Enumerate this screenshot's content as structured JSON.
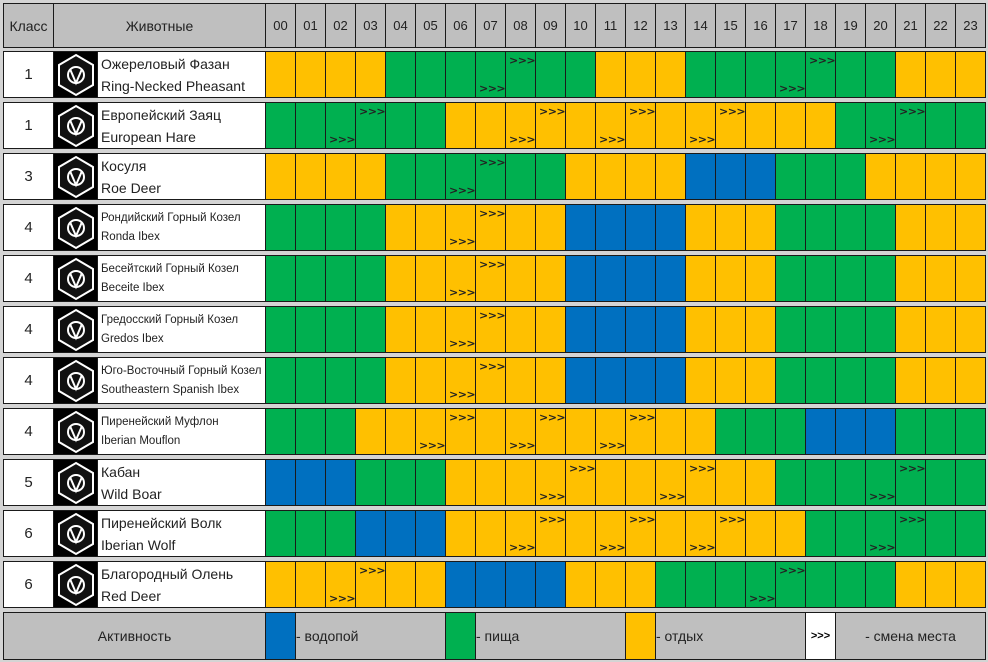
{
  "header": {
    "class_label": "Класс",
    "animals_label": "Животные",
    "hours": [
      "00",
      "01",
      "02",
      "03",
      "04",
      "05",
      "06",
      "07",
      "08",
      "09",
      "10",
      "11",
      "12",
      "13",
      "14",
      "15",
      "16",
      "17",
      "18",
      "19",
      "20",
      "21",
      "22",
      "23"
    ]
  },
  "colors": {
    "water": "#0070c0",
    "food": "#00b050",
    "rest": "#ffc000"
  },
  "move_symbol": ">>>",
  "rows": [
    {
      "class": "1",
      "ru": "Ожереловый Фазан",
      "en": "Ring-Necked Pheasant",
      "icon": "pheasant-icon",
      "hours": "yyyygggggggyyygggggggyyy",
      "top": [
        8,
        18
      ],
      "bottom": [
        7,
        17
      ]
    },
    {
      "class": "1",
      "ru": "Европейский Заяц",
      "en": "European Hare",
      "icon": "hare-icon",
      "hours": "ggggggyyyyyyyyyyyyyggggg",
      "top": [
        3,
        9,
        12,
        15,
        21
      ],
      "bottom": [
        2,
        8,
        11,
        14,
        20
      ]
    },
    {
      "class": "3",
      "ru": "Косуля",
      "en": "Roe Deer",
      "icon": "roe-deer-icon",
      "hours": "yyyyggggggyyyybbbgggyyyy",
      "top": [
        7
      ],
      "bottom": [
        6
      ]
    },
    {
      "class": "4",
      "ru": "Рондийский Горный Козел",
      "en": "Ronda Ibex",
      "icon": "ibex-icon",
      "hours": "ggggyyyyyybbbbyyyggggyyy",
      "top": [
        7
      ],
      "bottom": [
        6
      ],
      "small": true
    },
    {
      "class": "4",
      "ru": "Бесейтский Горный Козел",
      "en": "Beceite Ibex",
      "icon": "ibex-icon",
      "hours": "ggggyyyyyybbbbyyyggggyyy",
      "top": [
        7
      ],
      "bottom": [
        6
      ],
      "small": true
    },
    {
      "class": "4",
      "ru": "Гредосский Горный Козел",
      "en": "Gredos Ibex",
      "icon": "ibex-icon",
      "hours": "ggggyyyyyybbbbyyyggggyyy",
      "top": [
        7
      ],
      "bottom": [
        6
      ],
      "small": true
    },
    {
      "class": "4",
      "ru": "Юго-Восточный Горный Козел",
      "en": "Southeastern Spanish Ibex",
      "icon": "ibex-icon",
      "hours": "ggggyyyyyybbbbyyyggggyyy",
      "top": [
        7
      ],
      "bottom": [
        6
      ],
      "small": true
    },
    {
      "class": "4",
      "ru": "Пиренейский Муфлон",
      "en": "Iberian Mouflon",
      "icon": "mouflon-icon",
      "hours": "gggyyyyyyyyyyyygggbbbggg",
      "top": [
        6,
        9,
        12
      ],
      "bottom": [
        5,
        8,
        11
      ],
      "small": true
    },
    {
      "class": "5",
      "ru": "Кабан",
      "en": "Wild Boar",
      "icon": "boar-icon",
      "hours": "bbbgggyyyyyyyyyyyggggggg",
      "top": [
        10,
        14,
        21
      ],
      "bottom": [
        9,
        13,
        20
      ]
    },
    {
      "class": "6",
      "ru": "Пиренейский Волк",
      "en": "Iberian Wolf",
      "icon": "wolf-icon",
      "hours": "gggbbbyyyyyyyyyyyygggggg",
      "top": [
        9,
        12,
        15,
        21
      ],
      "bottom": [
        8,
        11,
        14,
        20
      ]
    },
    {
      "class": "6",
      "ru": "Благородный Олень",
      "en": "Red Deer",
      "icon": "red-deer-icon",
      "hours": "yyyyyybbbbyyyggggggggyyy",
      "top": [
        3,
        17
      ],
      "bottom": [
        2,
        16
      ]
    }
  ],
  "legend": {
    "title": "Активность",
    "water": "- водопой",
    "food": "- пища",
    "rest": "- отдых",
    "move": "- смена места"
  }
}
